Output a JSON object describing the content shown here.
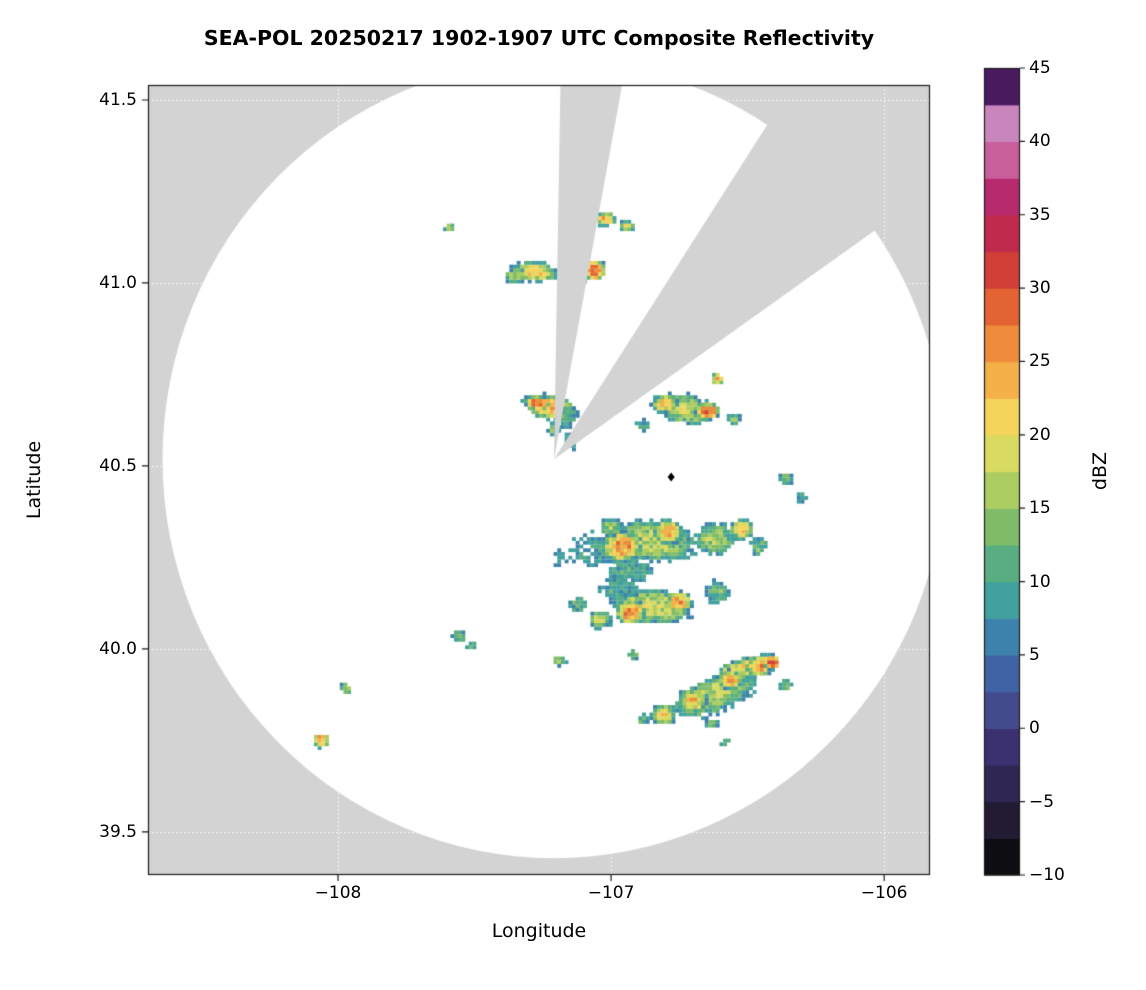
{
  "title": "SEA-POL 20250217 1902-1907 UTC Composite Reflectivity",
  "axes": {
    "xlabel": "Longitude",
    "ylabel": "Latitude",
    "xticks": [
      -108,
      -107,
      -106
    ],
    "xtick_labels": [
      "−108",
      "−107",
      "−106"
    ],
    "yticks": [
      41.5,
      41.0,
      40.5,
      40.0,
      39.5
    ],
    "ytick_labels": [
      "41.5",
      "41.0",
      "40.5",
      "40.0",
      "39.5"
    ]
  },
  "colorbar": {
    "label": "dBZ",
    "min": -10,
    "max": 45,
    "band_step": 2.5,
    "tick_values": [
      45,
      40,
      35,
      30,
      25,
      20,
      15,
      10,
      5,
      0,
      -5,
      -10
    ],
    "tick_labels": [
      "45",
      "40",
      "35",
      "30",
      "25",
      "20",
      "15",
      "10",
      "5",
      "0",
      "−5",
      "−10"
    ],
    "palette": [
      "#0e0d12",
      "#221b33",
      "#302652",
      "#3b3070",
      "#434b8e",
      "#3f63a5",
      "#3d82ac",
      "#42a09f",
      "#58ae82",
      "#7fbc6a",
      "#abcd61",
      "#d9da60",
      "#f4d45b",
      "#f5b04a",
      "#ee8c3b",
      "#e36432",
      "#d23f36",
      "#c02b4d",
      "#b72a6e",
      "#c85e9b",
      "#c886bd",
      "#4a1a5e"
    ]
  },
  "figure": {
    "outside_color": "#d3d3d3",
    "coverage_color": "#ffffff",
    "frame_color": "#1a1a1a",
    "grid_color": "rgba(255,255,255,0.9)",
    "marker_color": "#000000"
  },
  "chart_data": {
    "type": "heatmap",
    "title": "SEA-POL 20250217 1902-1907 UTC Composite Reflectivity",
    "xlabel": "Longitude",
    "ylabel": "Latitude",
    "xlim": [
      -108.696,
      -105.832
    ],
    "ylim": [
      39.382,
      41.541
    ],
    "value_units": "dBZ",
    "value_range": [
      -10,
      45
    ],
    "radar": {
      "center": [
        -107.209,
        40.518
      ],
      "range_deg_lat": 1.09,
      "blocked_azimuths_deg": [
        [
          1,
          10.5
        ],
        [
          33,
          55
        ]
      ],
      "site_marker": [
        -106.78,
        40.47
      ]
    },
    "echoes_format": [
      "lon",
      "lat",
      "semi_major_deg",
      "semi_minor_deg",
      "rotation_deg",
      "peak_dbz"
    ],
    "echoes": [
      [
        -107.59,
        41.15,
        0.02,
        0.014,
        0,
        16
      ],
      [
        -107.02,
        41.175,
        0.04,
        0.02,
        0,
        24
      ],
      [
        -106.94,
        41.155,
        0.03,
        0.016,
        0,
        19
      ],
      [
        -107.28,
        41.03,
        0.085,
        0.028,
        -4,
        22
      ],
      [
        -107.35,
        41.02,
        0.04,
        0.02,
        0,
        16
      ],
      [
        -107.06,
        41.035,
        0.042,
        0.03,
        0,
        30
      ],
      [
        -107.12,
        41.005,
        0.035,
        0.018,
        0,
        19
      ],
      [
        -107.22,
        40.66,
        0.1,
        0.034,
        -6,
        25
      ],
      [
        -107.27,
        40.672,
        0.048,
        0.02,
        -6,
        30
      ],
      [
        -107.16,
        40.635,
        0.045,
        0.035,
        0,
        11
      ],
      [
        -107.21,
        40.6,
        0.025,
        0.018,
        0,
        13
      ],
      [
        -107.15,
        40.565,
        0.028,
        0.024,
        0,
        10
      ],
      [
        -106.73,
        40.655,
        0.115,
        0.042,
        -8,
        17
      ],
      [
        -106.8,
        40.67,
        0.05,
        0.026,
        0,
        23
      ],
      [
        -106.645,
        40.65,
        0.045,
        0.026,
        0,
        29
      ],
      [
        -106.61,
        40.738,
        0.022,
        0.016,
        0,
        24
      ],
      [
        -106.55,
        40.628,
        0.03,
        0.018,
        0,
        14
      ],
      [
        -106.88,
        40.61,
        0.028,
        0.016,
        0,
        11
      ],
      [
        -106.36,
        40.465,
        0.03,
        0.02,
        0,
        13
      ],
      [
        -106.3,
        40.415,
        0.022,
        0.016,
        0,
        12
      ],
      [
        -106.85,
        40.295,
        0.17,
        0.058,
        -4,
        17
      ],
      [
        -107.06,
        40.27,
        0.095,
        0.048,
        0,
        9
      ],
      [
        -107.17,
        40.25,
        0.055,
        0.025,
        0,
        7
      ],
      [
        -106.93,
        40.215,
        0.09,
        0.038,
        0,
        11
      ],
      [
        -106.96,
        40.28,
        0.075,
        0.045,
        0,
        26
      ],
      [
        -106.79,
        40.32,
        0.055,
        0.035,
        0,
        26
      ],
      [
        -107.0,
        40.33,
        0.045,
        0.026,
        0,
        15
      ],
      [
        -106.62,
        40.3,
        0.075,
        0.045,
        0,
        16
      ],
      [
        -106.52,
        40.325,
        0.045,
        0.03,
        0,
        21
      ],
      [
        -106.46,
        40.28,
        0.035,
        0.026,
        0,
        13
      ],
      [
        -106.85,
        40.115,
        0.15,
        0.048,
        -3,
        19
      ],
      [
        -106.97,
        40.165,
        0.075,
        0.035,
        0,
        10
      ],
      [
        -106.93,
        40.1,
        0.055,
        0.035,
        0,
        27
      ],
      [
        -106.75,
        40.128,
        0.048,
        0.03,
        0,
        25
      ],
      [
        -107.04,
        40.08,
        0.045,
        0.026,
        0,
        17
      ],
      [
        -107.12,
        40.12,
        0.035,
        0.022,
        0,
        12
      ],
      [
        -106.61,
        40.155,
        0.045,
        0.032,
        0,
        13
      ],
      [
        -107.555,
        40.035,
        0.026,
        0.016,
        0,
        15
      ],
      [
        -107.51,
        40.008,
        0.018,
        0.012,
        0,
        11
      ],
      [
        -107.19,
        39.968,
        0.026,
        0.016,
        0,
        14
      ],
      [
        -106.92,
        39.985,
        0.022,
        0.014,
        0,
        12
      ],
      [
        -106.62,
        39.875,
        0.165,
        0.052,
        16,
        17
      ],
      [
        -106.52,
        39.945,
        0.1,
        0.03,
        10,
        21
      ],
      [
        -106.45,
        39.955,
        0.06,
        0.03,
        10,
        26
      ],
      [
        -106.41,
        39.962,
        0.03,
        0.02,
        0,
        33
      ],
      [
        -106.56,
        39.915,
        0.045,
        0.028,
        0,
        24
      ],
      [
        -106.7,
        39.858,
        0.055,
        0.034,
        0,
        23
      ],
      [
        -106.81,
        39.82,
        0.045,
        0.03,
        0,
        21
      ],
      [
        -106.88,
        39.808,
        0.026,
        0.016,
        0,
        13
      ],
      [
        -106.63,
        39.795,
        0.026,
        0.016,
        0,
        15
      ],
      [
        -106.36,
        39.9,
        0.024,
        0.016,
        0,
        14
      ],
      [
        -106.58,
        39.745,
        0.018,
        0.013,
        0,
        12
      ],
      [
        -108.06,
        39.75,
        0.03,
        0.022,
        0,
        26
      ],
      [
        -107.97,
        39.89,
        0.022,
        0.016,
        0,
        15
      ]
    ]
  }
}
